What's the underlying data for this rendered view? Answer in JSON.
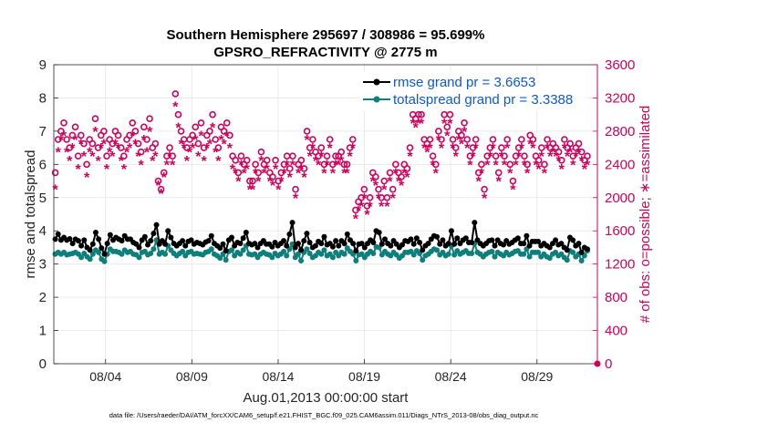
{
  "chart_data": {
    "type": "line",
    "title_line1": "Southern Hemisphere 295697 / 308986 = 95.699%",
    "title_line2": "GPSRO_REFRACTIVITY @ 2775 m",
    "xlabel": "Aug.01,2013 00:00:00 start",
    "ylabel_left": "rmse and totalspread",
    "ylabel_right": "# of obs: o=possible; ∗=assimilated",
    "xlim": [
      1,
      32.5
    ],
    "ylim_left": [
      0,
      9
    ],
    "ylim_right": [
      0,
      3600
    ],
    "x_tick_values": [
      4,
      9,
      14,
      19,
      24,
      29
    ],
    "x_tick_labels": [
      "08/04",
      "08/09",
      "08/14",
      "08/19",
      "08/24",
      "08/29"
    ],
    "y_ticks_left": [
      "0",
      "1",
      "2",
      "3",
      "4",
      "5",
      "6",
      "7",
      "8",
      "9"
    ],
    "y_ticks_right": [
      "0",
      "400",
      "800",
      "1200",
      "1600",
      "2000",
      "2400",
      "2800",
      "3200",
      "3600"
    ],
    "grid": true,
    "legend_position": "top-right",
    "series": [
      {
        "name": "rmse grand pr = 3.6653",
        "color": "#000000",
        "axis": "left",
        "values": [
          3.75,
          3.9,
          3.72,
          3.8,
          3.72,
          3.76,
          3.62,
          3.75,
          3.7,
          3.55,
          3.72,
          3.5,
          3.42,
          3.6,
          3.95,
          3.75,
          3.48,
          3.3,
          3.62,
          3.88,
          3.72,
          3.8,
          3.75,
          3.7,
          3.85,
          3.75,
          3.75,
          3.65,
          3.6,
          3.5,
          3.72,
          3.82,
          3.58,
          3.7,
          3.92,
          4.18,
          3.6,
          3.7,
          3.6,
          4.0,
          3.8,
          3.62,
          3.55,
          3.62,
          3.7,
          3.55,
          3.68,
          3.72,
          3.6,
          3.65,
          3.62,
          3.58,
          3.66,
          3.7,
          3.85,
          3.62,
          3.55,
          3.48,
          3.6,
          3.4,
          3.72,
          3.8,
          3.55,
          3.65,
          3.62,
          3.78,
          3.95,
          3.62,
          3.58,
          3.62,
          3.5,
          3.62,
          3.7,
          3.6,
          3.6,
          3.52,
          3.65,
          3.55,
          3.62,
          3.7,
          3.55,
          3.9,
          4.25,
          3.5,
          3.62,
          3.42,
          3.7,
          3.92,
          3.65,
          3.5,
          3.55,
          3.68,
          3.62,
          3.82,
          3.58,
          3.62,
          3.52,
          3.7,
          3.55,
          3.7,
          3.62,
          3.9,
          3.72,
          3.62,
          3.4,
          3.6,
          3.62,
          3.5,
          3.62,
          3.72,
          3.65,
          4.0,
          3.95,
          3.6,
          3.75,
          3.62,
          3.55,
          3.7,
          3.6,
          3.5,
          3.58,
          3.7,
          3.68,
          3.75,
          3.6,
          3.78,
          3.65,
          3.42,
          3.55,
          3.62,
          3.75,
          3.85,
          3.82,
          3.6,
          3.72,
          3.55,
          3.62,
          4.0,
          3.6,
          3.78,
          3.62,
          3.72,
          3.78,
          3.65,
          3.65,
          4.25,
          3.72,
          3.62,
          3.55,
          3.62,
          3.7,
          3.72,
          3.55,
          3.72,
          3.62,
          3.58,
          3.7,
          3.6,
          3.65,
          3.72,
          3.78,
          3.62,
          3.62,
          3.85,
          3.55,
          3.68,
          3.68,
          3.68,
          3.55,
          3.62,
          3.55,
          3.5,
          3.62,
          3.72,
          3.58,
          3.62,
          3.5,
          3.42,
          3.8,
          3.72,
          3.55,
          3.62,
          3.35,
          3.5,
          3.45
        ]
      },
      {
        "name": "totalspread grand pr = 3.3388",
        "color": "#0e7f7a",
        "axis": "left",
        "values": [
          3.3,
          3.35,
          3.3,
          3.35,
          3.28,
          3.3,
          3.32,
          3.35,
          3.3,
          3.2,
          3.32,
          3.22,
          3.15,
          3.3,
          3.42,
          3.35,
          3.15,
          3.08,
          3.3,
          3.45,
          3.38,
          3.38,
          3.35,
          3.3,
          3.42,
          3.35,
          3.38,
          3.3,
          3.28,
          3.2,
          3.35,
          3.38,
          3.28,
          3.32,
          3.45,
          3.72,
          3.3,
          3.35,
          3.3,
          3.55,
          3.42,
          3.32,
          3.25,
          3.32,
          3.38,
          3.25,
          3.35,
          3.38,
          3.3,
          3.32,
          3.3,
          3.28,
          3.35,
          3.38,
          3.45,
          3.3,
          3.25,
          3.18,
          3.3,
          3.12,
          3.38,
          3.42,
          3.25,
          3.35,
          3.3,
          3.42,
          3.55,
          3.3,
          3.28,
          3.3,
          3.2,
          3.3,
          3.35,
          3.3,
          3.28,
          3.2,
          3.32,
          3.25,
          3.3,
          3.38,
          3.25,
          3.45,
          3.6,
          3.2,
          3.3,
          3.1,
          3.35,
          3.45,
          3.32,
          3.2,
          3.25,
          3.35,
          3.3,
          3.42,
          3.25,
          3.3,
          3.2,
          3.35,
          3.25,
          3.35,
          3.3,
          3.48,
          3.38,
          3.3,
          3.1,
          3.28,
          3.3,
          3.2,
          3.3,
          3.38,
          3.32,
          3.52,
          3.5,
          3.28,
          3.38,
          3.3,
          3.25,
          3.35,
          3.28,
          3.18,
          3.25,
          3.35,
          3.35,
          3.38,
          3.28,
          3.4,
          3.32,
          3.12,
          3.25,
          3.3,
          3.38,
          3.45,
          3.42,
          3.28,
          3.35,
          3.25,
          3.3,
          3.55,
          3.28,
          3.4,
          3.3,
          3.35,
          3.4,
          3.32,
          3.32,
          3.62,
          3.35,
          3.3,
          3.22,
          3.3,
          3.35,
          3.38,
          3.22,
          3.35,
          3.3,
          3.25,
          3.35,
          3.28,
          3.32,
          3.38,
          3.4,
          3.3,
          3.3,
          3.45,
          3.22,
          3.35,
          3.35,
          3.35,
          3.22,
          3.3,
          3.22,
          3.18,
          3.3,
          3.35,
          3.25,
          3.3,
          3.2,
          3.12,
          3.4,
          3.35,
          3.22,
          3.3,
          3.1,
          3.25,
          3.4
        ]
      },
      {
        "name": "obs possible",
        "color": "#d1005a",
        "axis": "right",
        "marker": "o",
        "values": [
          2300,
          2700,
          2800,
          2900,
          2700,
          2600,
          2750,
          2850,
          2500,
          2750,
          2650,
          2400,
          2700,
          2650,
          2950,
          2600,
          2750,
          2800,
          2500,
          2700,
          2650,
          2800,
          2750,
          2600,
          2500,
          2700,
          2750,
          2900,
          2800,
          2650,
          2550,
          2850,
          2700,
          2950,
          2600,
          2650,
          2200,
          2100,
          2300,
          2500,
          2600,
          2500,
          3250,
          3000,
          2800,
          2700,
          2600,
          2700,
          2750,
          2850,
          2650,
          2900,
          2600,
          2750,
          2800,
          3000,
          2700,
          2600,
          2850,
          2800,
          2900,
          2750,
          2500,
          2450,
          2300,
          2500,
          2400,
          2450,
          2200,
          2200,
          2400,
          2300,
          2550,
          2400,
          2450,
          2300,
          2250,
          2450,
          2200,
          2300,
          2400,
          2500,
          2350,
          2500,
          2100,
          2400,
          2450,
          2350,
          2800,
          2600,
          2700,
          2550,
          2500,
          2600,
          2400,
          2500,
          2700,
          2400,
          2500,
          2500,
          2550,
          2400,
          2400,
          2600,
          2700,
          1850,
          1950,
          2000,
          2100,
          1900,
          2000,
          2300,
          2250,
          2100,
          2000,
          2200,
          2000,
          2300,
          2100,
          2400,
          2300,
          2250,
          2400,
          2350,
          2600,
          3000,
          2950,
          3000,
          3000,
          2700,
          2650,
          2700,
          2500,
          2400,
          2800,
          2700,
          3000,
          2850,
          3000,
          2700,
          2600,
          2800,
          2750,
          2900,
          2700,
          2500,
          2600,
          2700,
          2300,
          2400,
          2100,
          2500,
          2600,
          2700,
          2500,
          2300,
          2600,
          2500,
          2700,
          2400,
          2200,
          2500,
          2600,
          2700,
          2500,
          2400,
          2750,
          2700,
          2500,
          2450,
          2600,
          2400,
          2700,
          2600,
          2650,
          2600,
          2550,
          2450,
          2700,
          2600,
          2650,
          2500,
          2600,
          2650,
          2550,
          2450,
          2500
        ]
      },
      {
        "name": "obs assimilated",
        "color": "#d1005a",
        "axis": "right",
        "marker": "*",
        "values": [
          2100,
          2550,
          2700,
          2750,
          2550,
          2450,
          2600,
          2700,
          2350,
          2650,
          2500,
          2250,
          2550,
          2500,
          2800,
          2450,
          2600,
          2650,
          2350,
          2550,
          2500,
          2650,
          2600,
          2450,
          2350,
          2550,
          2600,
          2750,
          2650,
          2500,
          2400,
          2700,
          2550,
          2800,
          2450,
          2500,
          2150,
          2050,
          2250,
          2400,
          2500,
          2400,
          3100,
          2850,
          2650,
          2600,
          2450,
          2550,
          2600,
          2700,
          2500,
          2750,
          2450,
          2600,
          2650,
          2850,
          2550,
          2450,
          2700,
          2650,
          2750,
          2600,
          2350,
          2300,
          2200,
          2400,
          2300,
          2350,
          2100,
          2100,
          2300,
          2200,
          2450,
          2300,
          2350,
          2200,
          2150,
          2350,
          2100,
          2200,
          2300,
          2400,
          2250,
          2400,
          2000,
          2300,
          2350,
          2250,
          2700,
          2500,
          2600,
          2450,
          2400,
          2500,
          2300,
          2400,
          2600,
          2300,
          2400,
          2400,
          2450,
          2300,
          2300,
          2500,
          2600,
          1750,
          1850,
          1900,
          2000,
          1800,
          1900,
          2200,
          2150,
          2000,
          1900,
          2100,
          1900,
          2200,
          2000,
          2300,
          2200,
          2150,
          2300,
          2250,
          2500,
          2900,
          2850,
          2900,
          2900,
          2600,
          2550,
          2600,
          2400,
          2300,
          2700,
          2600,
          2900,
          2750,
          2900,
          2600,
          2500,
          2700,
          2650,
          2800,
          2600,
          2400,
          2500,
          2600,
          2200,
          2300,
          2000,
          2400,
          2500,
          2600,
          2400,
          2200,
          2500,
          2400,
          2600,
          2300,
          2100,
          2400,
          2500,
          2600,
          2400,
          2300,
          2650,
          2600,
          2400,
          2350,
          2500,
          2300,
          2600,
          2500,
          2550,
          2500,
          2450,
          2350,
          2600,
          2500,
          2550,
          2400,
          2500,
          2550,
          2450,
          2350,
          2400
        ]
      }
    ]
  },
  "footer": "data file: /Users/raeder/DAI/ATM_forcXX/CAM6_setup/f.e21.FHIST_BGC.f09_025.CAM6assim.011/Diags_NTrS_2013-08/obs_diag_output.nc"
}
